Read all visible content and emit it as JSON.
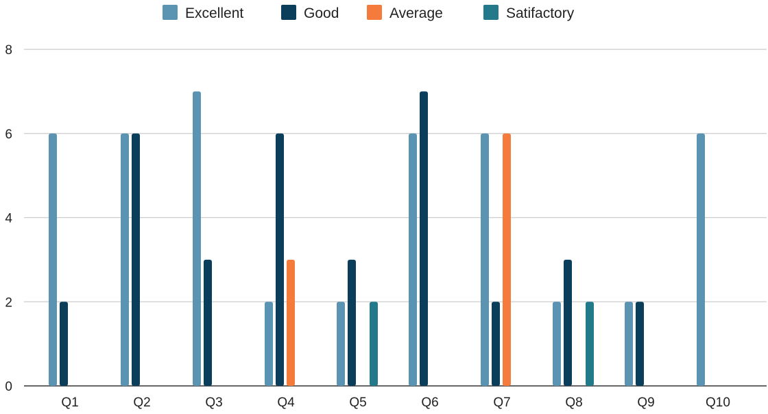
{
  "chart_data": {
    "type": "bar",
    "categories": [
      "Q1",
      "Q2",
      "Q3",
      "Q4",
      "Q5",
      "Q6",
      "Q7",
      "Q8",
      "Q9",
      "Q10"
    ],
    "series": [
      {
        "name": "Excellent",
        "color": "#5b93b3",
        "values": [
          6,
          6,
          7,
          2,
          2,
          6,
          6,
          2,
          2,
          6
        ]
      },
      {
        "name": "Good",
        "color": "#0b3e5a",
        "values": [
          2,
          6,
          3,
          6,
          3,
          7,
          2,
          3,
          2,
          0
        ]
      },
      {
        "name": "Average",
        "color": "#f47b3b",
        "values": [
          0,
          0,
          0,
          3,
          0,
          0,
          6,
          0,
          0,
          0
        ]
      },
      {
        "name": "Satifactory",
        "color": "#22798a",
        "values": [
          0,
          0,
          0,
          0,
          2,
          0,
          0,
          2,
          0,
          0
        ]
      }
    ],
    "ylim": [
      0,
      8
    ],
    "yticks": [
      "0",
      "2",
      "4",
      "6",
      "8"
    ],
    "grid": true,
    "legend_position": "top"
  }
}
